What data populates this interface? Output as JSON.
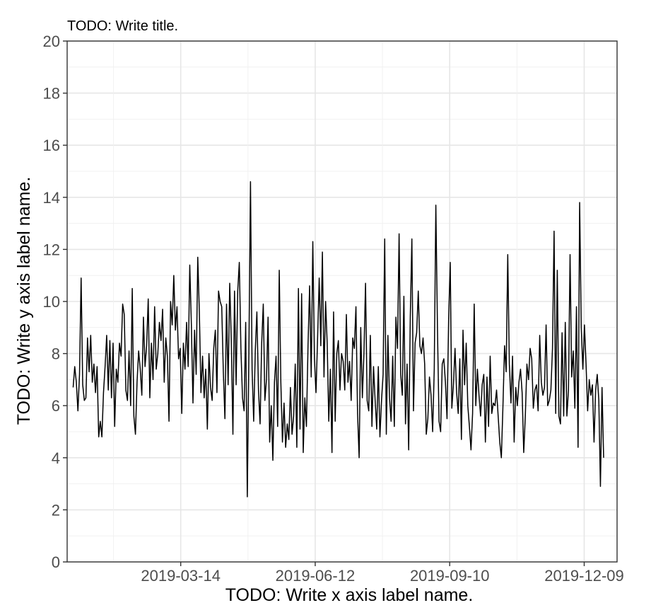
{
  "chart_data": {
    "type": "line",
    "title": "TODO: Write title.",
    "xlabel": "TODO: Write x axis label name.",
    "ylabel": "TODO: Write y axis label name.",
    "xlim": [
      "2018-12-28",
      "2019-12-31"
    ],
    "ylim": [
      0,
      20
    ],
    "x_ticks": [
      "2019-03-14",
      "2019-06-12",
      "2019-09-10",
      "2019-12-09"
    ],
    "y_ticks": [
      0,
      2,
      4,
      6,
      8,
      10,
      12,
      14,
      16,
      18,
      20
    ],
    "grid": true,
    "legend": "none",
    "series": [
      {
        "start_date": "2019-01-01",
        "end_date": "2019-12-22",
        "values": [
          6.7,
          7.5,
          6.9,
          5.8,
          7.2,
          10.9,
          6.8,
          6.2,
          6.3,
          8.6,
          7.3,
          8.7,
          6.9,
          7.6,
          6.5,
          7.5,
          4.8,
          5.4,
          4.8,
          6.5,
          7.5,
          8.7,
          6.6,
          8.5,
          6.3,
          8.4,
          5.2,
          7.4,
          6.9,
          8.4,
          7.9,
          9.9,
          9.5,
          6.6,
          6.2,
          8.1,
          6.0,
          10.5,
          5.6,
          4.9,
          6.9,
          8.1,
          7.4,
          6.4,
          9.4,
          7.5,
          8.3,
          10.1,
          6.3,
          8.4,
          7.0,
          9.8,
          7.4,
          8.0,
          9.2,
          8.5,
          9.7,
          6.9,
          8.6,
          7.9,
          5.4,
          10.0,
          9.1,
          11.0,
          8.9,
          9.8,
          7.8,
          8.2,
          5.7,
          8.4,
          7.4,
          9.2,
          7.5,
          11.4,
          9.1,
          6.1,
          8.9,
          7.2,
          11.7,
          9.6,
          6.5,
          7.9,
          6.3,
          7.4,
          5.1,
          8.0,
          6.7,
          6.2,
          8.2,
          8.9,
          6.5,
          10.4,
          10.0,
          9.8,
          7.3,
          5.5,
          9.9,
          6.8,
          10.7,
          8.5,
          4.9,
          10.4,
          6.8,
          10.4,
          11.5,
          8.2,
          6.3,
          5.8,
          9.2,
          2.5,
          8.0,
          14.6,
          7.4,
          5.4,
          8.1,
          9.6,
          6.6,
          5.3,
          8.4,
          9.9,
          6.2,
          7.0,
          9.4,
          4.6,
          6.0,
          3.9,
          6.9,
          7.9,
          5.2,
          11.2,
          6.9,
          4.6,
          6.1,
          4.4,
          5.3,
          4.7,
          6.7,
          4.9,
          5.6,
          7.6,
          4.4,
          10.5,
          5.1,
          10.3,
          4.2,
          6.3,
          5.2,
          8.3,
          10.6,
          7.1,
          12.3,
          7.8,
          6.5,
          8.6,
          10.9,
          8.3,
          11.9,
          7.1,
          10.0,
          8.4,
          5.4,
          7.4,
          4.2,
          9.6,
          5.4,
          8.0,
          8.5,
          6.6,
          8.0,
          7.7,
          6.6,
          9.5,
          6.9,
          7.7,
          6.2,
          8.6,
          8.2,
          9.8,
          5.7,
          4.0,
          9.0,
          6.3,
          8.0,
          10.7,
          6.2,
          5.8,
          8.7,
          5.2,
          7.5,
          6.2,
          5.1,
          7.5,
          4.8,
          6.2,
          7.2,
          12.4,
          4.9,
          8.7,
          6.3,
          5.4,
          7.9,
          5.2,
          9.4,
          8.2,
          12.6,
          7.2,
          6.4,
          10.2,
          5.3,
          7.6,
          4.3,
          9.4,
          12.4,
          5.8,
          8.4,
          8.8,
          10.4,
          8.3,
          8.0,
          8.6,
          7.6,
          4.9,
          5.5,
          7.1,
          6.4,
          5.0,
          7.4,
          13.7,
          9.0,
          5.4,
          5.0,
          7.6,
          7.8,
          6.9,
          5.5,
          9.3,
          11.5,
          5.9,
          6.8,
          8.2,
          6.5,
          5.7,
          7.8,
          4.7,
          8.9,
          6.8,
          8.4,
          6.0,
          5.2,
          4.3,
          5.7,
          9.9,
          6.0,
          7.4,
          6.4,
          5.6,
          6.8,
          7.2,
          4.6,
          7.1,
          5.2,
          7.9,
          5.7,
          6.1,
          6.0,
          6.6,
          5.6,
          4.6,
          4.0,
          6.0,
          8.3,
          7.3,
          11.8,
          7.6,
          6.1,
          7.9,
          4.6,
          6.7,
          6.0,
          6.9,
          7.4,
          6.5,
          4.2,
          5.6,
          7.6,
          7.0,
          8.2,
          7.8,
          5.9,
          6.6,
          6.8,
          5.8,
          8.7,
          6.9,
          6.4,
          6.7,
          9.1,
          6.0,
          6.2,
          6.6,
          8.2,
          12.7,
          5.7,
          11.2,
          5.6,
          5.3,
          8.8,
          5.6,
          9.2,
          5.6,
          6.6,
          11.8,
          7.1,
          8.1,
          5.9,
          9.8,
          4.4,
          13.8,
          9.0,
          7.4,
          9.1,
          7.6,
          5.8,
          7.0,
          6.4,
          6.8,
          4.6,
          6.6,
          7.2,
          6.2,
          2.9,
          6.7,
          4.0
        ]
      }
    ]
  }
}
